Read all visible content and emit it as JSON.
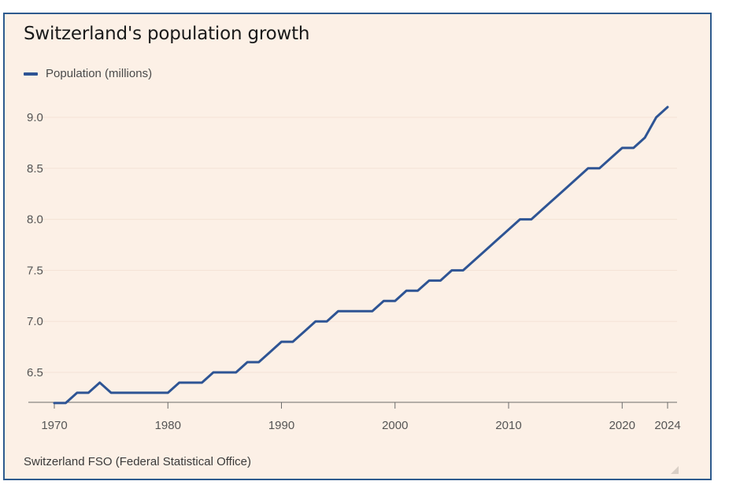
{
  "chart_data": {
    "type": "line",
    "title": "Switzerland's population growth",
    "source": "Switzerland FSO (Federal Statistical Office)",
    "xlabel": "",
    "ylabel": "",
    "ylim": [
      6.2,
      9.2
    ],
    "xlim": [
      1970,
      2024
    ],
    "yticks": [
      "6.5",
      "7.0",
      "7.5",
      "8.0",
      "8.5",
      "9.0"
    ],
    "xticks": [
      "1970",
      "1980",
      "1990",
      "2000",
      "2010",
      "2020",
      "2024"
    ],
    "legend_position": "top-left",
    "grid": "horizontal",
    "series": [
      {
        "name": "Population (millions)",
        "color": "#2e5494",
        "x": [
          1970,
          1971,
          1972,
          1973,
          1974,
          1975,
          1976,
          1977,
          1978,
          1979,
          1980,
          1981,
          1982,
          1983,
          1984,
          1985,
          1986,
          1987,
          1988,
          1989,
          1990,
          1991,
          1992,
          1993,
          1994,
          1995,
          1996,
          1997,
          1998,
          1999,
          2000,
          2001,
          2002,
          2003,
          2004,
          2005,
          2006,
          2007,
          2008,
          2009,
          2010,
          2011,
          2012,
          2013,
          2014,
          2015,
          2016,
          2017,
          2018,
          2019,
          2020,
          2021,
          2022,
          2023,
          2024
        ],
        "y": [
          6.2,
          6.2,
          6.3,
          6.3,
          6.4,
          6.3,
          6.3,
          6.3,
          6.3,
          6.3,
          6.3,
          6.4,
          6.4,
          6.4,
          6.5,
          6.5,
          6.5,
          6.6,
          6.6,
          6.7,
          6.8,
          6.8,
          6.9,
          7.0,
          7.0,
          7.1,
          7.1,
          7.1,
          7.1,
          7.2,
          7.2,
          7.3,
          7.3,
          7.4,
          7.4,
          7.5,
          7.5,
          7.6,
          7.7,
          7.8,
          7.9,
          8.0,
          8.0,
          8.1,
          8.2,
          8.3,
          8.4,
          8.5,
          8.5,
          8.6,
          8.7,
          8.7,
          8.8,
          9.0,
          9.1
        ]
      }
    ]
  }
}
